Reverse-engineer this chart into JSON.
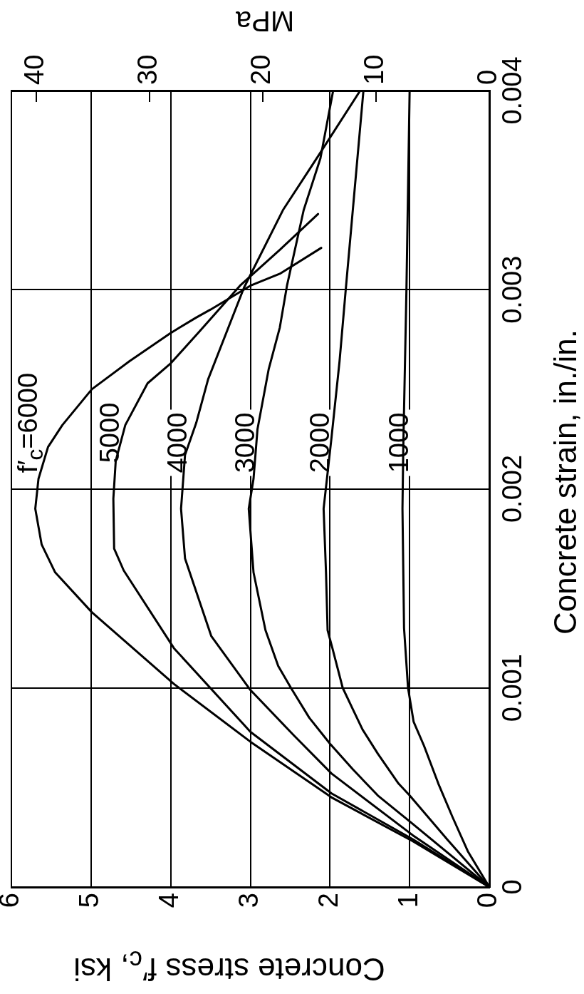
{
  "chart_data": {
    "type": "line",
    "xlabel": "Concrete stress f′$_{c}$, ksi",
    "x2label": "MPa",
    "ylabel": "Concrete strain, in./in.",
    "xlim": [
      6,
      0
    ],
    "xticks": [
      6,
      5,
      4,
      3,
      2,
      1,
      0
    ],
    "x2lim": [
      42.2,
      0
    ],
    "x2ticks": [
      40,
      30,
      20,
      10,
      0
    ],
    "ylim": [
      0,
      0.004
    ],
    "yticks": [
      0,
      0.001,
      0.002,
      0.003,
      0.004
    ],
    "grid": true,
    "series": [
      {
        "name": "f′$_{c}$=6000",
        "color": "#000000",
        "x": [
          0,
          0.96,
          1.98,
          3.0,
          3.96,
          4.99,
          5.45,
          5.62,
          5.7,
          5.66,
          5.54,
          5.36,
          4.99,
          4.52,
          4.01,
          3.68,
          3.5,
          3.0,
          2.63,
          2.11
        ],
        "values": [
          0,
          0.00023,
          0.00045,
          0.00073,
          0.00102,
          0.00138,
          0.00158,
          0.00172,
          0.0019,
          0.00205,
          0.00221,
          0.00232,
          0.0025,
          0.00264,
          0.00278,
          0.00286,
          0.0029,
          0.00302,
          0.00308,
          0.00321
        ]
      },
      {
        "name": "5000",
        "color": "#000000",
        "x": [
          0,
          0.96,
          1.98,
          3.0,
          3.96,
          4.59,
          4.71,
          4.72,
          4.69,
          4.57,
          4.29,
          4.0,
          3.64,
          3.13,
          2.63,
          2.15
        ],
        "values": [
          0,
          0.00024,
          0.00047,
          0.00078,
          0.0012,
          0.00159,
          0.0017,
          0.00195,
          0.00214,
          0.00232,
          0.00253,
          0.00263,
          0.00279,
          0.00302,
          0.0032,
          0.00338
        ]
      },
      {
        "name": "4000",
        "color": "#000000",
        "x": [
          0,
          0.96,
          1.98,
          2.45,
          3.0,
          3.49,
          3.82,
          3.87,
          3.82,
          3.68,
          3.53,
          3.08,
          2.59,
          2.15,
          1.62
        ],
        "values": [
          0,
          0.00026,
          0.00057,
          0.00076,
          0.00099,
          0.00126,
          0.00165,
          0.0019,
          0.00217,
          0.00233,
          0.00255,
          0.00301,
          0.0034,
          0.00367,
          0.004
        ]
      },
      {
        "name": "3000",
        "color": "#000000",
        "x": [
          0,
          1.0,
          1.4,
          1.71,
          2.0,
          2.26,
          2.49,
          2.65,
          2.81,
          2.96,
          3.02,
          2.96,
          2.91,
          2.77,
          2.63,
          2.54,
          2.33,
          2.12,
          1.96
        ],
        "values": [
          0,
          0.00033,
          0.00046,
          0.00059,
          0.00072,
          0.00085,
          0.001,
          0.00111,
          0.00129,
          0.00158,
          0.0019,
          0.00205,
          0.0023,
          0.0026,
          0.00281,
          0.00302,
          0.0034,
          0.00366,
          0.004
        ]
      },
      {
        "name": "2000",
        "color": "#000000",
        "x": [
          0,
          0.53,
          1.0,
          1.14,
          1.4,
          1.59,
          1.71,
          1.84,
          1.97,
          2.03,
          2.05,
          2.08,
          1.98,
          1.88,
          1.8,
          1.58
        ],
        "values": [
          0,
          0.00024,
          0.00046,
          0.00052,
          0.00067,
          0.00079,
          0.00089,
          0.001,
          0.0012,
          0.00129,
          0.00158,
          0.0019,
          0.00226,
          0.00264,
          0.00301,
          0.004
        ]
      },
      {
        "name": "1000",
        "color": "#000000",
        "x": [
          0,
          0.27,
          0.46,
          0.64,
          0.82,
          0.95,
          1.02,
          1.07,
          1.08,
          1.09,
          1.08,
          1.06,
          1.04,
          1.0
        ],
        "values": [
          0,
          0.00018,
          0.00035,
          0.00052,
          0.00071,
          0.00083,
          0.001,
          0.0013,
          0.0016,
          0.0019,
          0.0022,
          0.0026,
          0.003,
          0.004
        ]
      }
    ]
  }
}
